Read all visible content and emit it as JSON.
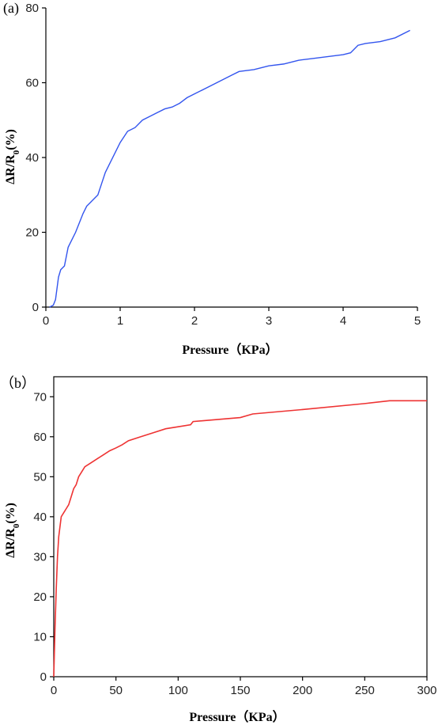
{
  "chart_data": [
    {
      "type": "line",
      "panel_label": "(a)",
      "xlabel": "Pressure（KPa）",
      "ylabel": "ΔR/R",
      "ylabel_sub": "0",
      "ylabel_suffix": "(%)",
      "xlim": [
        0,
        5
      ],
      "ylim": [
        0,
        80
      ],
      "xticks": [
        0,
        1,
        2,
        3,
        4,
        5
      ],
      "yticks": [
        0,
        20,
        40,
        60,
        80
      ],
      "grid": false,
      "color": "#3355ee",
      "series": [
        {
          "x": [
            0.05,
            0.1,
            0.13,
            0.17,
            0.2,
            0.25,
            0.3,
            0.35,
            0.4,
            0.5,
            0.55,
            0.6,
            0.7,
            0.75,
            0.8,
            0.85,
            1.0,
            1.1,
            1.2,
            1.3,
            1.4,
            1.5,
            1.6,
            1.7,
            1.8,
            1.9,
            2.0,
            2.2,
            2.4,
            2.5,
            2.6,
            2.8,
            3.0,
            3.2,
            3.4,
            3.6,
            3.8,
            4.0,
            4.1,
            4.2,
            4.3,
            4.5,
            4.7,
            4.9
          ],
          "y": [
            0,
            0.5,
            2,
            8,
            10,
            11,
            16,
            18,
            20,
            25,
            27,
            28,
            30,
            33,
            36,
            38,
            44,
            47,
            48,
            50,
            51,
            52,
            53,
            53.5,
            54.5,
            56,
            57,
            59,
            61,
            62,
            63,
            63.5,
            64.5,
            65,
            66,
            66.5,
            67,
            67.5,
            68,
            70,
            70.5,
            71,
            72,
            74
          ]
        }
      ]
    },
    {
      "type": "line",
      "panel_label": "（b）",
      "xlabel": "Pressure（KPa）",
      "ylabel": "ΔR/R",
      "ylabel_sub": "0",
      "ylabel_suffix": "(%)",
      "xlim": [
        0,
        300
      ],
      "ylim": [
        0,
        75
      ],
      "xticks": [
        0,
        50,
        100,
        150,
        200,
        250,
        300
      ],
      "yticks": [
        0,
        10,
        20,
        30,
        40,
        50,
        60,
        70
      ],
      "grid": false,
      "color": "#ee3333",
      "series": [
        {
          "x": [
            0,
            1,
            2,
            3,
            4,
            6,
            8,
            10,
            12,
            14,
            16,
            18,
            20,
            22,
            25,
            30,
            35,
            40,
            45,
            50,
            55,
            60,
            70,
            80,
            90,
            100,
            110,
            112,
            120,
            150,
            160,
            200,
            250,
            270,
            300
          ],
          "y": [
            0,
            12,
            22,
            30,
            35,
            40,
            41,
            42,
            43,
            45,
            47,
            48,
            50,
            51,
            52.5,
            53.5,
            54.5,
            55.5,
            56.5,
            57.2,
            58,
            59,
            60,
            61,
            62,
            62.5,
            63,
            63.8,
            64,
            64.8,
            65.7,
            66.8,
            68.3,
            69,
            69
          ]
        }
      ]
    }
  ]
}
